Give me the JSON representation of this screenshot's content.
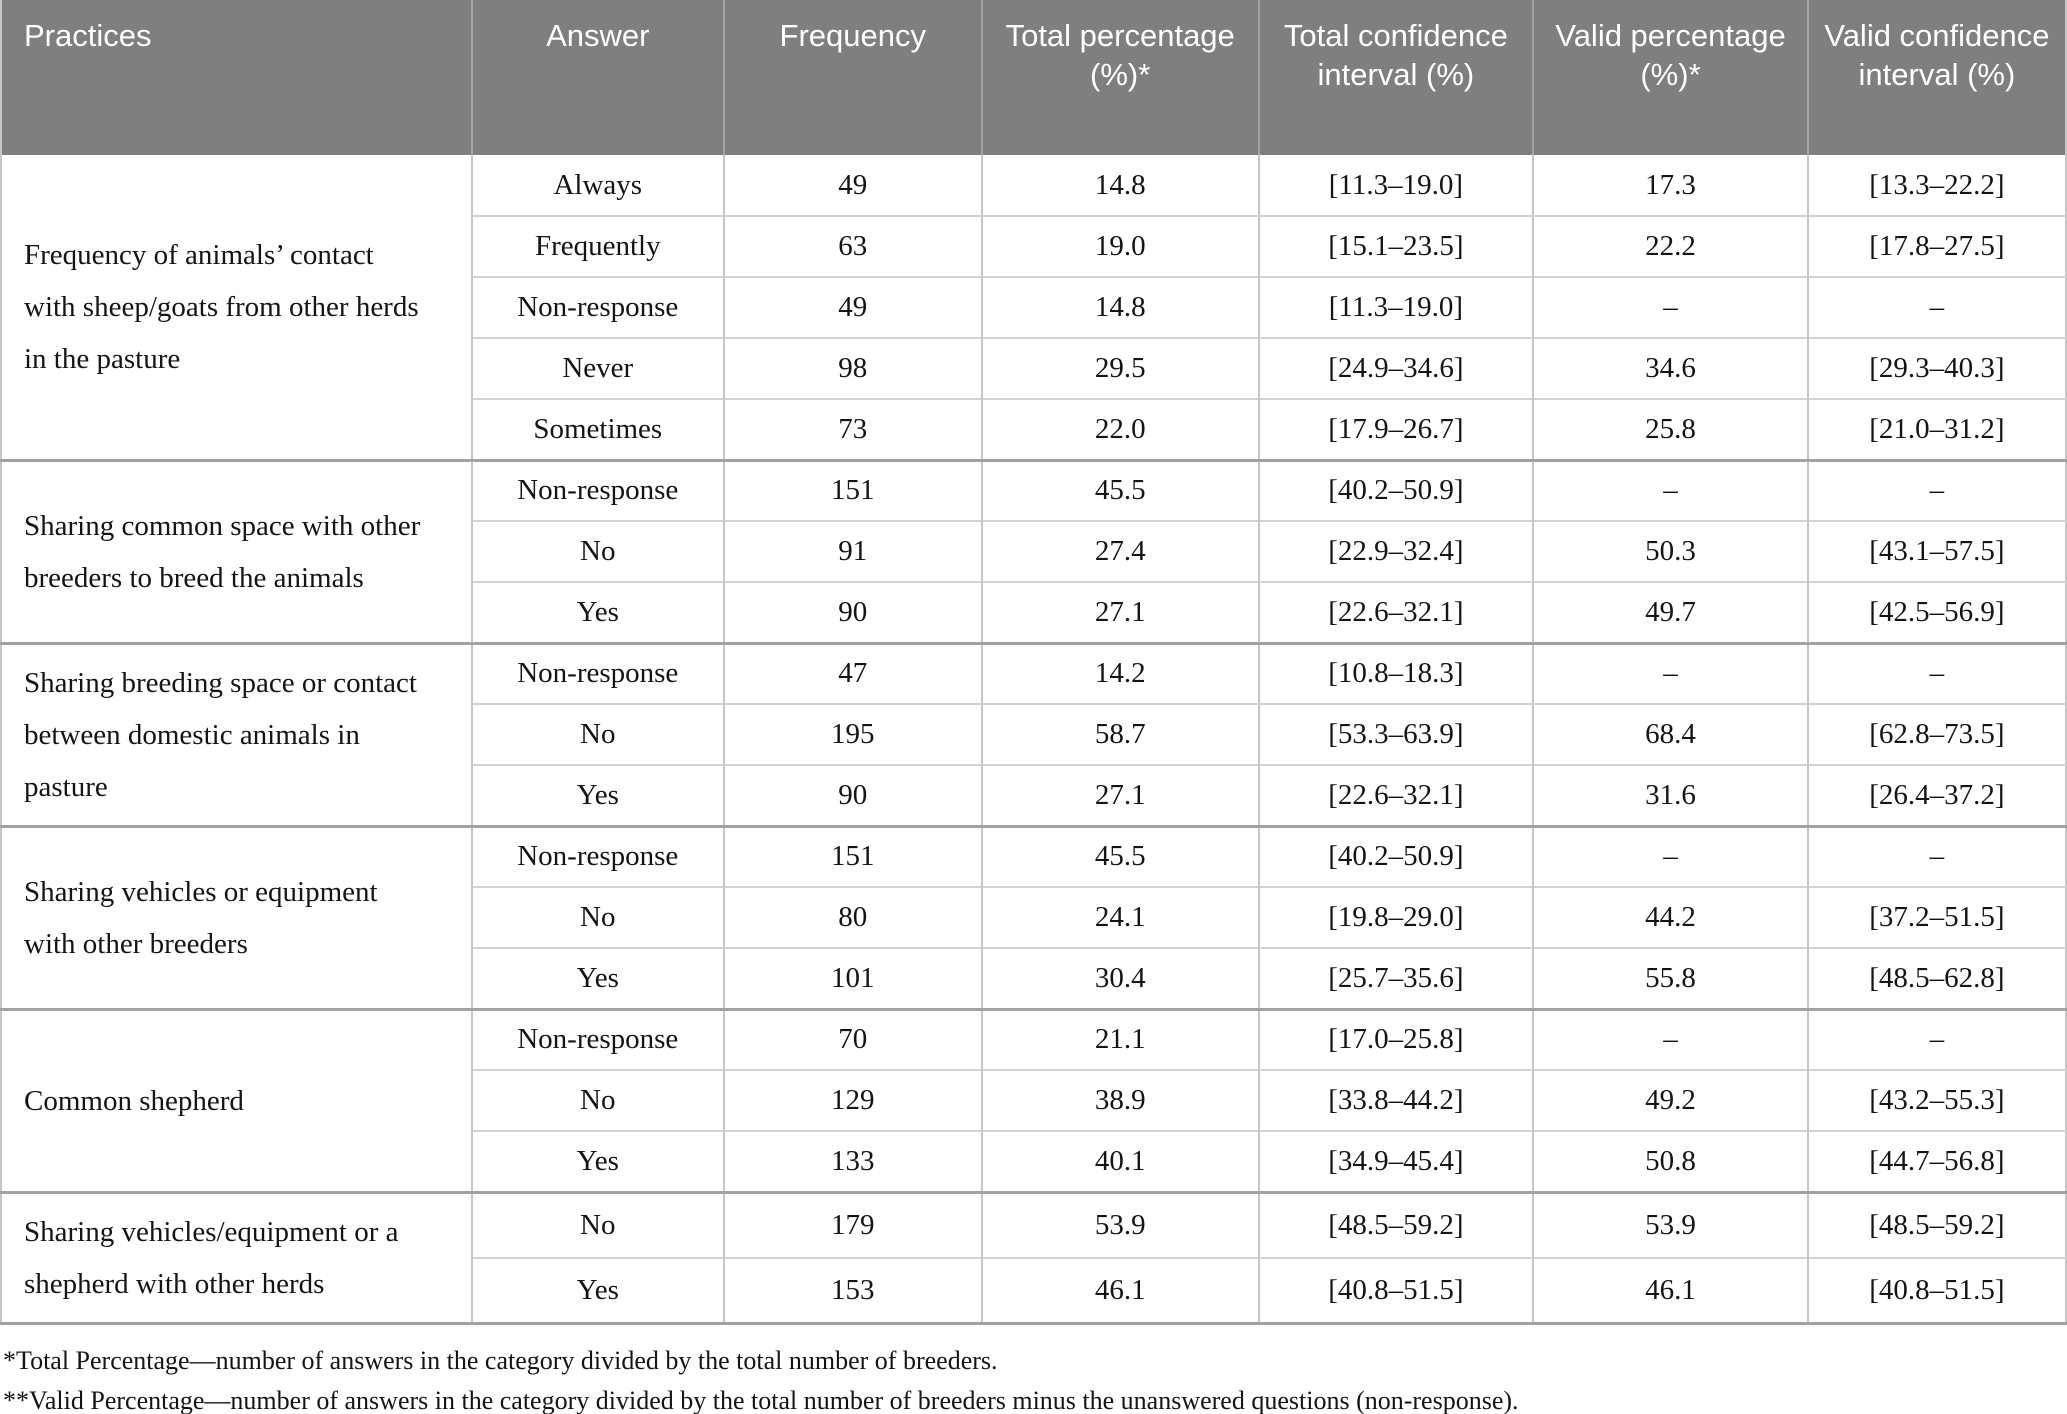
{
  "colors": {
    "header_bg": "#7f7f7f",
    "header_text": "#ffffff",
    "body_text": "#141414",
    "grid_light": "#d2d2d2",
    "grid_dark": "#a2a2a2"
  },
  "table": {
    "columns": [
      "Practices",
      "Answer",
      "Frequency",
      "Total percentage (%)*",
      "Total confidence interval (%)",
      "Valid percentage (%)*",
      "Valid confidence interval (%)"
    ],
    "groups": [
      {
        "practice": "Frequency of animals’ contact with sheep/goats from other herds in the pasture",
        "rows": [
          {
            "answer": "Always",
            "frequency": "49",
            "total_pct": "14.8",
            "total_ci": "[11.3–19.0]",
            "valid_pct": "17.3",
            "valid_ci": "[13.3–22.2]"
          },
          {
            "answer": "Frequently",
            "frequency": "63",
            "total_pct": "19.0",
            "total_ci": "[15.1–23.5]",
            "valid_pct": "22.2",
            "valid_ci": "[17.8–27.5]"
          },
          {
            "answer": "Non-response",
            "frequency": "49",
            "total_pct": "14.8",
            "total_ci": "[11.3–19.0]",
            "valid_pct": "–",
            "valid_ci": "–"
          },
          {
            "answer": "Never",
            "frequency": "98",
            "total_pct": "29.5",
            "total_ci": "[24.9–34.6]",
            "valid_pct": "34.6",
            "valid_ci": "[29.3–40.3]"
          },
          {
            "answer": "Sometimes",
            "frequency": "73",
            "total_pct": "22.0",
            "total_ci": "[17.9–26.7]",
            "valid_pct": "25.8",
            "valid_ci": "[21.0–31.2]"
          }
        ]
      },
      {
        "practice": "Sharing common space with other breeders to breed the animals",
        "rows": [
          {
            "answer": "Non-response",
            "frequency": "151",
            "total_pct": "45.5",
            "total_ci": "[40.2–50.9]",
            "valid_pct": "–",
            "valid_ci": "–"
          },
          {
            "answer": "No",
            "frequency": "91",
            "total_pct": "27.4",
            "total_ci": "[22.9–32.4]",
            "valid_pct": "50.3",
            "valid_ci": "[43.1–57.5]"
          },
          {
            "answer": "Yes",
            "frequency": "90",
            "total_pct": "27.1",
            "total_ci": "[22.6–32.1]",
            "valid_pct": "49.7",
            "valid_ci": "[42.5–56.9]"
          }
        ]
      },
      {
        "practice": "Sharing breeding space or contact between domestic animals in pasture",
        "rows": [
          {
            "answer": "Non-response",
            "frequency": "47",
            "total_pct": "14.2",
            "total_ci": "[10.8–18.3]",
            "valid_pct": "–",
            "valid_ci": "–"
          },
          {
            "answer": "No",
            "frequency": "195",
            "total_pct": "58.7",
            "total_ci": "[53.3–63.9]",
            "valid_pct": "68.4",
            "valid_ci": "[62.8–73.5]"
          },
          {
            "answer": "Yes",
            "frequency": "90",
            "total_pct": "27.1",
            "total_ci": "[22.6–32.1]",
            "valid_pct": "31.6",
            "valid_ci": "[26.4–37.2]"
          }
        ]
      },
      {
        "practice": "Sharing vehicles or equipment with other breeders",
        "rows": [
          {
            "answer": "Non-response",
            "frequency": "151",
            "total_pct": "45.5",
            "total_ci": "[40.2–50.9]",
            "valid_pct": "–",
            "valid_ci": "–"
          },
          {
            "answer": "No",
            "frequency": "80",
            "total_pct": "24.1",
            "total_ci": "[19.8–29.0]",
            "valid_pct": "44.2",
            "valid_ci": "[37.2–51.5]"
          },
          {
            "answer": "Yes",
            "frequency": "101",
            "total_pct": "30.4",
            "total_ci": "[25.7–35.6]",
            "valid_pct": "55.8",
            "valid_ci": "[48.5–62.8]"
          }
        ]
      },
      {
        "practice": "Common shepherd",
        "rows": [
          {
            "answer": "Non-response",
            "frequency": "70",
            "total_pct": "21.1",
            "total_ci": "[17.0–25.8]",
            "valid_pct": "–",
            "valid_ci": "–"
          },
          {
            "answer": "No",
            "frequency": "129",
            "total_pct": "38.9",
            "total_ci": "[33.8–44.2]",
            "valid_pct": "49.2",
            "valid_ci": "[43.2–55.3]"
          },
          {
            "answer": "Yes",
            "frequency": "133",
            "total_pct": "40.1",
            "total_ci": "[34.9–45.4]",
            "valid_pct": "50.8",
            "valid_ci": "[44.7–56.8]"
          }
        ]
      },
      {
        "practice": "Sharing vehicles/equipment or a shepherd with other herds",
        "rows": [
          {
            "answer": "No",
            "frequency": "179",
            "total_pct": "53.9",
            "total_ci": "[48.5–59.2]",
            "valid_pct": "53.9",
            "valid_ci": "[48.5–59.2]"
          },
          {
            "answer": "Yes",
            "frequency": "153",
            "total_pct": "46.1",
            "total_ci": "[40.8–51.5]",
            "valid_pct": "46.1",
            "valid_ci": "[40.8–51.5]"
          }
        ]
      }
    ],
    "footnotes": [
      "*Total Percentage—number of answers in the category divided by the total number of breeders.",
      "**Valid Percentage—number of answers in the category divided by the total number of breeders minus the unanswered questions (non-response)."
    ]
  }
}
